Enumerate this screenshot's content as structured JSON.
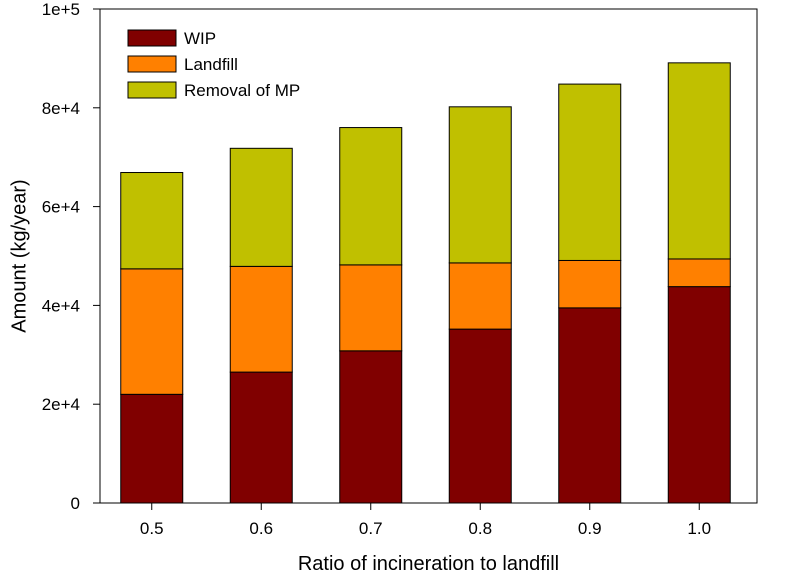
{
  "chart_data": {
    "type": "bar",
    "stacked": true,
    "categories": [
      "0.5",
      "0.6",
      "0.7",
      "0.8",
      "0.9",
      "1.0"
    ],
    "series": [
      {
        "name": "WIP",
        "color": "#800000",
        "values": [
          22000,
          26500,
          30800,
          35200,
          39500,
          43800
        ]
      },
      {
        "name": "Landfill",
        "color": "#ff8000",
        "values": [
          25400,
          21400,
          17400,
          13400,
          9600,
          5600
        ]
      },
      {
        "name": "Removal of MP",
        "color": "#c0c000",
        "values": [
          19500,
          23900,
          27800,
          31600,
          35700,
          39700
        ]
      }
    ],
    "xlabel": "Ratio of incineration to landfill",
    "ylabel": "Amount (kg/year)",
    "ylim": [
      0,
      100000
    ],
    "yticks": [
      {
        "value": 0,
        "label": "0"
      },
      {
        "value": 20000,
        "label": "2e+4"
      },
      {
        "value": 40000,
        "label": "4e+4"
      },
      {
        "value": 60000,
        "label": "6e+4"
      },
      {
        "value": 80000,
        "label": "8e+4"
      },
      {
        "value": 100000,
        "label": "1e+5"
      }
    ],
    "grid": false,
    "legend_position": "top-left"
  }
}
